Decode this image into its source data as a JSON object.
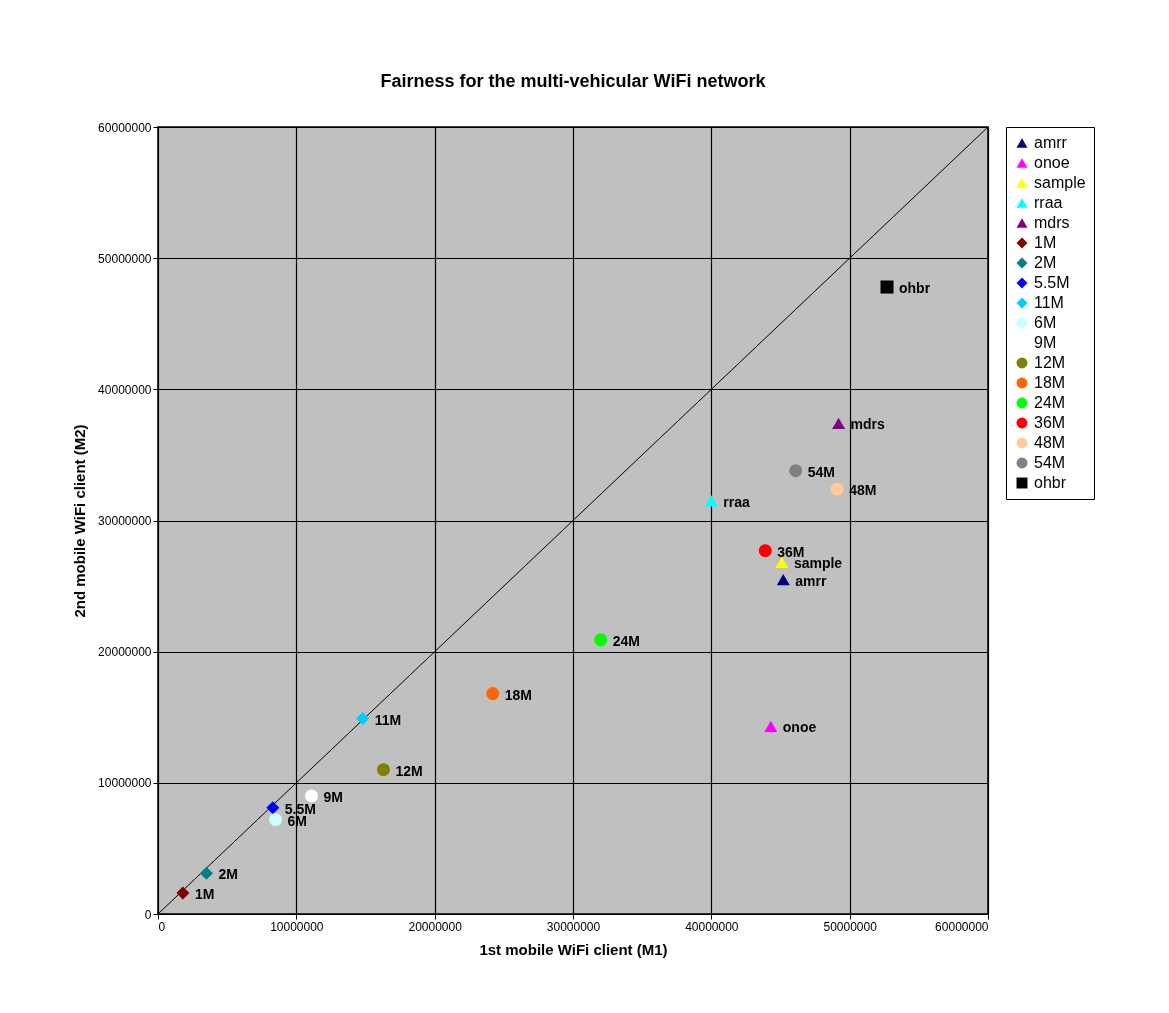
{
  "chart_data": {
    "type": "scatter",
    "title": "Fairness for the multi-vehicular WiFi network",
    "xlabel": "1st mobile WiFi client (M1)",
    "ylabel": "2nd mobile WiFi client (M2)",
    "xlim": [
      0,
      60000000
    ],
    "ylim": [
      0,
      60000000
    ],
    "xticks": [
      0,
      10000000,
      20000000,
      30000000,
      40000000,
      50000000,
      60000000
    ],
    "yticks": [
      0,
      10000000,
      20000000,
      30000000,
      40000000,
      50000000,
      60000000
    ],
    "grid": true,
    "legend": "right",
    "series": [
      {
        "name": "amrr",
        "color": "#000080",
        "marker": "triangle",
        "x": [
          45200000
        ],
        "values": [
          25500000
        ]
      },
      {
        "name": "onoe",
        "color": "#ff00ff",
        "marker": "triangle",
        "x": [
          44300000
        ],
        "values": [
          14300000
        ]
      },
      {
        "name": "sample",
        "color": "#ffff00",
        "marker": "triangle",
        "x": [
          45100000
        ],
        "values": [
          26800000
        ]
      },
      {
        "name": "rraa",
        "color": "#00ffff",
        "marker": "triangle",
        "x": [
          40000000
        ],
        "values": [
          31500000
        ]
      },
      {
        "name": "mdrs",
        "color": "#800080",
        "marker": "triangle",
        "x": [
          49200000
        ],
        "values": [
          37400000
        ]
      },
      {
        "name": "1M",
        "color": "#800000",
        "marker": "diamond",
        "x": [
          1800000
        ],
        "values": [
          1600000
        ]
      },
      {
        "name": "2M",
        "color": "#008080",
        "marker": "diamond",
        "x": [
          3500000
        ],
        "values": [
          3100000
        ]
      },
      {
        "name": "5.5M",
        "color": "#0000ff",
        "marker": "diamond",
        "x": [
          8300000
        ],
        "values": [
          8100000
        ]
      },
      {
        "name": "11M",
        "color": "#00ccff",
        "marker": "diamond",
        "x": [
          14800000
        ],
        "values": [
          14900000
        ]
      },
      {
        "name": "6M",
        "color": "#ccffff",
        "marker": "circle",
        "x": [
          8500000
        ],
        "values": [
          7200000
        ]
      },
      {
        "name": "9M",
        "color": "#ffffff",
        "marker": "circle",
        "x": [
          11100000
        ],
        "values": [
          9000000
        ]
      },
      {
        "name": "12M",
        "color": "#808000",
        "marker": "circle",
        "x": [
          16300000
        ],
        "values": [
          11000000
        ]
      },
      {
        "name": "18M",
        "color": "#ff6600",
        "marker": "circle",
        "x": [
          24200000
        ],
        "values": [
          16800000
        ]
      },
      {
        "name": "24M",
        "color": "#00ff00",
        "marker": "circle",
        "x": [
          32000000
        ],
        "values": [
          20900000
        ]
      },
      {
        "name": "36M",
        "color": "#ff0000",
        "marker": "circle",
        "x": [
          43900000
        ],
        "values": [
          27700000
        ]
      },
      {
        "name": "48M",
        "color": "#ffcc99",
        "marker": "circle",
        "x": [
          49100000
        ],
        "values": [
          32400000
        ]
      },
      {
        "name": "54M",
        "color": "#808080",
        "marker": "circle",
        "x": [
          46100000
        ],
        "values": [
          33800000
        ]
      },
      {
        "name": "ohbr",
        "color": "#000000",
        "marker": "square",
        "x": [
          52700000
        ],
        "values": [
          47800000
        ]
      },
      {
        "type": "line",
        "color": "#000000",
        "x": [
          0,
          60000000
        ],
        "values": [
          0,
          60000000
        ]
      }
    ]
  }
}
